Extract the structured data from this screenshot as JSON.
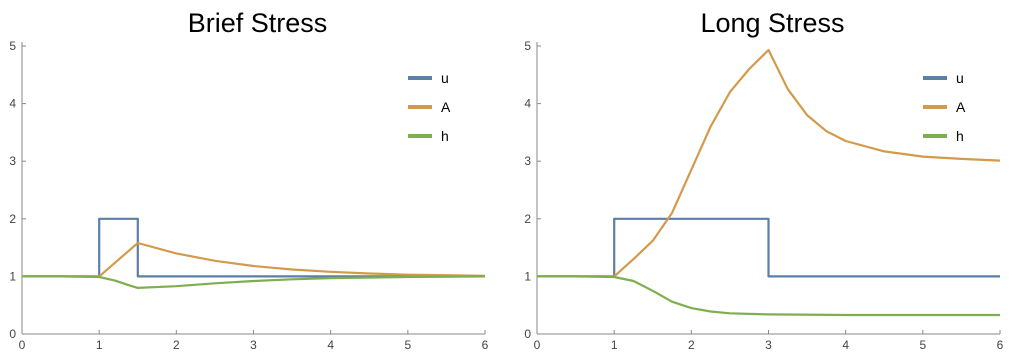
{
  "chart_data": [
    {
      "type": "line",
      "title": "Brief Stress",
      "xlim": [
        0,
        6
      ],
      "ylim": [
        0,
        5
      ],
      "xticks": [
        0,
        1,
        2,
        3,
        4,
        5,
        6
      ],
      "yticks": [
        0,
        1,
        2,
        3,
        4,
        5
      ],
      "legend_position": "top-right",
      "series": [
        {
          "name": "u",
          "color": "#5b7fa6",
          "x": [
            0,
            1,
            1,
            1.5,
            1.5,
            6
          ],
          "y": [
            1,
            1,
            2,
            2,
            1,
            1
          ]
        },
        {
          "name": "A",
          "color": "#d39a4c",
          "x": [
            0,
            1,
            1.5,
            2,
            2.5,
            3,
            3.5,
            4,
            4.5,
            5,
            5.5,
            6
          ],
          "y": [
            1,
            1,
            1.58,
            1.4,
            1.27,
            1.18,
            1.12,
            1.08,
            1.05,
            1.03,
            1.02,
            1.01
          ]
        },
        {
          "name": "h",
          "color": "#7fae4e",
          "x": [
            0,
            0.5,
            1,
            1.2,
            1.4,
            1.5,
            2,
            2.5,
            3,
            3.5,
            4,
            5,
            6
          ],
          "y": [
            1,
            1,
            0.99,
            0.93,
            0.84,
            0.8,
            0.83,
            0.88,
            0.92,
            0.95,
            0.97,
            0.99,
            1
          ]
        }
      ]
    },
    {
      "type": "line",
      "title": "Long Stress",
      "xlim": [
        0,
        6
      ],
      "ylim": [
        0,
        5
      ],
      "xticks": [
        0,
        1,
        2,
        3,
        4,
        5,
        6
      ],
      "yticks": [
        0,
        1,
        2,
        3,
        4,
        5
      ],
      "legend_position": "top-right",
      "series": [
        {
          "name": "u",
          "color": "#5b7fa6",
          "x": [
            0,
            1,
            1,
            3,
            3,
            6
          ],
          "y": [
            1,
            1,
            2,
            2,
            1,
            1
          ]
        },
        {
          "name": "A",
          "color": "#d39a4c",
          "x": [
            0,
            1,
            1.25,
            1.5,
            1.75,
            2,
            2.25,
            2.5,
            2.75,
            3,
            3.25,
            3.5,
            3.75,
            4,
            4.5,
            5,
            5.5,
            6
          ],
          "y": [
            1,
            1,
            1.3,
            1.62,
            2.1,
            2.85,
            3.6,
            4.2,
            4.6,
            4.93,
            4.25,
            3.8,
            3.52,
            3.35,
            3.17,
            3.08,
            3.04,
            3.01
          ]
        },
        {
          "name": "h",
          "color": "#7fae4e",
          "x": [
            0,
            0.5,
            1,
            1.25,
            1.5,
            1.75,
            2,
            2.25,
            2.5,
            3,
            4,
            5,
            6
          ],
          "y": [
            1,
            1,
            0.99,
            0.92,
            0.75,
            0.56,
            0.45,
            0.39,
            0.36,
            0.34,
            0.33,
            0.33,
            0.33
          ]
        }
      ]
    }
  ]
}
